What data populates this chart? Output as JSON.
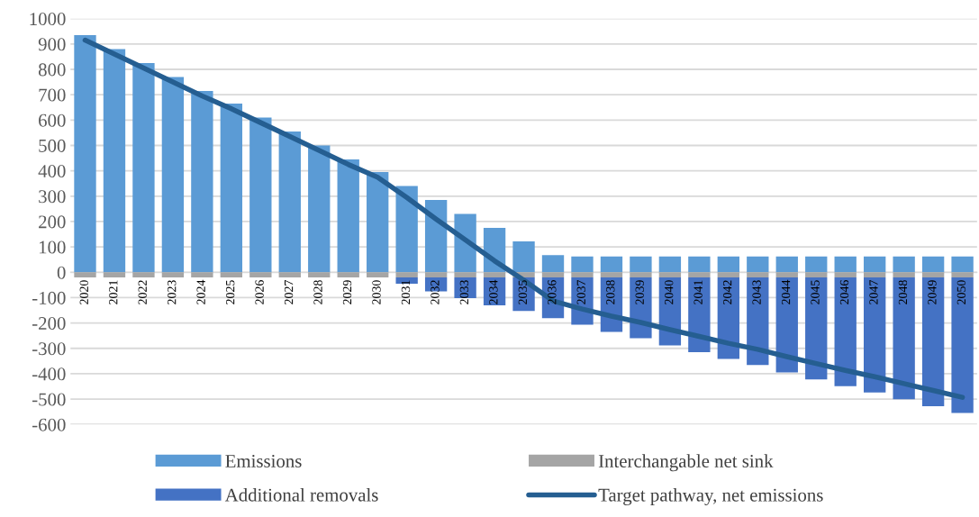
{
  "chart_data": {
    "type": "bar",
    "stacked": true,
    "categories": [
      "2020",
      "2021",
      "2022",
      "2023",
      "2024",
      "2025",
      "2026",
      "2027",
      "2028",
      "2029",
      "2030",
      "2031",
      "2032",
      "2033",
      "2034",
      "2035",
      "2036",
      "2037",
      "2038",
      "2039",
      "2040",
      "2041",
      "2042",
      "2043",
      "2044",
      "2045",
      "2046",
      "2047",
      "2048",
      "2049",
      "2050"
    ],
    "series": [
      {
        "name": "Emissions",
        "color": "#5b9bd5",
        "values": [
          935,
          880,
          825,
          770,
          715,
          665,
          610,
          555,
          500,
          445,
          395,
          340,
          285,
          230,
          175,
          122,
          68,
          62,
          62,
          62,
          62,
          62,
          62,
          62,
          62,
          62,
          62,
          62,
          62,
          62,
          62
        ]
      },
      {
        "name": "Interchangable net sink",
        "color": "#a5a5a5",
        "values": [
          -20,
          -20,
          -20,
          -20,
          -20,
          -20,
          -20,
          -20,
          -20,
          -20,
          -20,
          -20,
          -20,
          -20,
          -20,
          -20,
          -20,
          -20,
          -20,
          -20,
          -20,
          -20,
          -20,
          -20,
          -20,
          -20,
          -20,
          -20,
          -20,
          -20,
          -20
        ]
      },
      {
        "name": "Additional removals",
        "color": "#4472c4",
        "values": [
          null,
          null,
          null,
          null,
          null,
          null,
          null,
          null,
          null,
          null,
          null,
          -25,
          -55,
          -82,
          -110,
          -133,
          -161,
          -187,
          -215,
          -240,
          -268,
          -295,
          -322,
          -346,
          -375,
          -402,
          -429,
          -454,
          -481,
          -508,
          -535
        ]
      },
      {
        "name": "Target pathway, net emissions",
        "type": "line",
        "color": "#255e91",
        "values": [
          915,
          860,
          805,
          750,
          695,
          645,
          590,
          535,
          480,
          425,
          375,
          295,
          210,
          128,
          45,
          -31,
          -113,
          -145,
          -173,
          -198,
          -226,
          -253,
          -280,
          -304,
          -333,
          -360,
          -387,
          -412,
          -439,
          -466,
          -493
        ]
      }
    ],
    "ylim": [
      -600,
      1000
    ],
    "yticks": [
      -600,
      -500,
      -400,
      -300,
      -200,
      -100,
      0,
      100,
      200,
      300,
      400,
      500,
      600,
      700,
      800,
      900,
      1000
    ],
    "grid": "y",
    "legend": "bottom"
  }
}
